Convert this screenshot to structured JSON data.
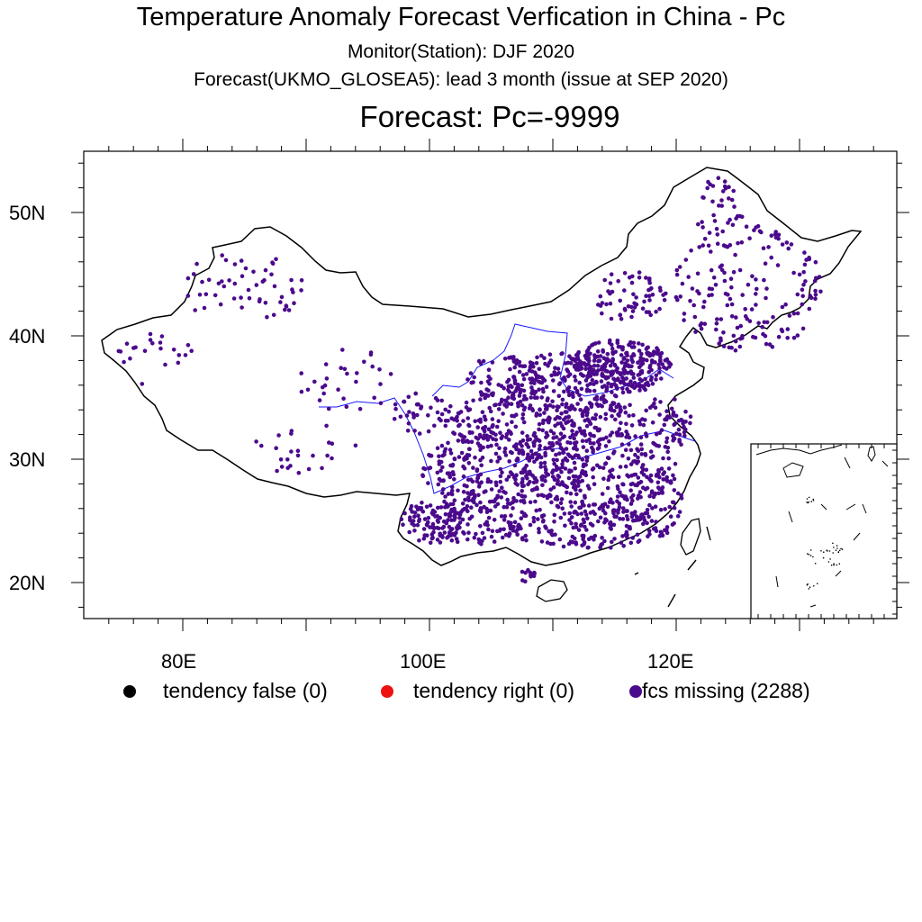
{
  "title": "Temperature Anomaly Forecast Verfication in China -  Pc",
  "subtitle_monitor": "Monitor(Station): DJF 2020",
  "subtitle_forecast": "Forecast(UKMO_GLOSEA5): lead 3 month (issue at SEP 2020)",
  "map_title": "Forecast: Pc=-9999",
  "axes": {
    "lat_labels": [
      "50N",
      "40N",
      "30N",
      "20N"
    ],
    "lon_labels": [
      "80E",
      "100E",
      "120E"
    ],
    "lon_range": [
      72,
      137
    ],
    "lat_range": [
      17,
      55
    ]
  },
  "legend": [
    {
      "label": "tendency false (0)",
      "color": "#000000"
    },
    {
      "label": "tendency right (0)",
      "color": "#ee1111"
    },
    {
      "label": "fcs missing (2288)",
      "color": "#4b0a8c"
    }
  ],
  "colors": {
    "station": "#4b0a8c",
    "border": "#000000",
    "river": "#1a1aff"
  }
}
